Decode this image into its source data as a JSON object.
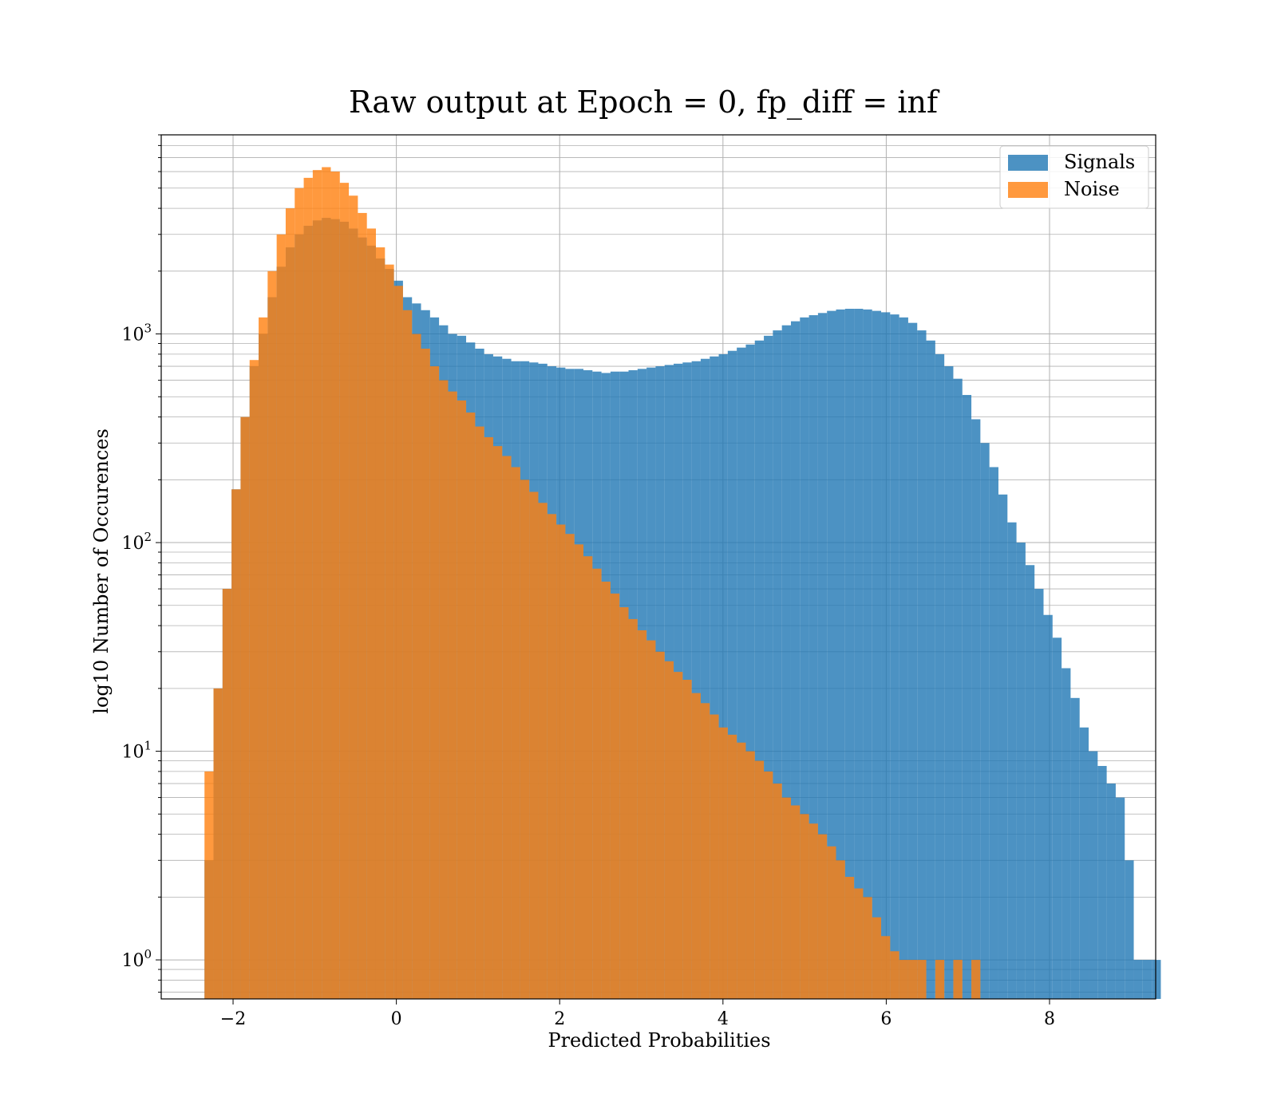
{
  "chart_data": {
    "type": "histogram",
    "title": "Raw output at Epoch = 0, fp_diff = inf",
    "xlabel": "Predicted Probabilities",
    "ylabel": "log10 Number of Occurences",
    "xlim": [
      -2.88,
      9.3
    ],
    "ylim": [
      0.65,
      9000
    ],
    "yscale": "log",
    "grid": true,
    "legend_position": "top-right",
    "x_ticks": [
      -2,
      0,
      2,
      4,
      6,
      8
    ],
    "x_tick_labels": [
      "−2",
      "0",
      "2",
      "4",
      "6",
      "8"
    ],
    "y_ticks": [
      {
        "value": 1,
        "base": "10",
        "exp": "0"
      },
      {
        "value": 10,
        "base": "10",
        "exp": "1"
      },
      {
        "value": 100,
        "base": "10",
        "exp": "2"
      },
      {
        "value": 1000,
        "base": "10",
        "exp": "3"
      }
    ],
    "series": [
      {
        "name": "Signals",
        "color": "#1f77b4",
        "opacity": 0.8,
        "bin_start": -2.35,
        "bin_width": 0.1105,
        "values": [
          3,
          20,
          60,
          180,
          400,
          700,
          1000,
          1500,
          2100,
          2600,
          3000,
          3300,
          3500,
          3600,
          3550,
          3450,
          3200,
          2900,
          2650,
          2300,
          2050,
          1800,
          1500,
          1400,
          1300,
          1200,
          1100,
          1000,
          980,
          910,
          850,
          800,
          780,
          760,
          740,
          740,
          730,
          720,
          700,
          690,
          680,
          680,
          670,
          660,
          650,
          660,
          660,
          670,
          680,
          690,
          700,
          710,
          720,
          730,
          740,
          760,
          780,
          800,
          830,
          860,
          890,
          930,
          980,
          1040,
          1100,
          1150,
          1200,
          1230,
          1260,
          1290,
          1310,
          1320,
          1320,
          1310,
          1290,
          1270,
          1240,
          1200,
          1130,
          1040,
          930,
          800,
          700,
          610,
          510,
          390,
          300,
          230,
          170,
          125,
          100,
          78,
          60,
          45,
          35,
          25,
          18,
          13,
          10,
          8.5,
          7,
          6,
          3,
          1,
          1,
          1
        ],
        "legend_label": "Signals"
      },
      {
        "name": "Noise",
        "color": "#ff7f0e",
        "opacity": 0.8,
        "bin_start": -2.35,
        "bin_width": 0.1105,
        "values": [
          8,
          20,
          60,
          180,
          400,
          750,
          1200,
          2000,
          3000,
          4000,
          5000,
          5600,
          6100,
          6300,
          6000,
          5300,
          4600,
          3800,
          3200,
          2600,
          2150,
          1700,
          1300,
          1000,
          850,
          700,
          600,
          530,
          480,
          420,
          360,
          320,
          290,
          260,
          230,
          200,
          175,
          155,
          137,
          122,
          110,
          98,
          86,
          75,
          65,
          57,
          49,
          43,
          38,
          34,
          30,
          27,
          24,
          22,
          19,
          17,
          15,
          13,
          12,
          11,
          10,
          9,
          8,
          7,
          6,
          5.5,
          5,
          4.5,
          4,
          3.5,
          3,
          2.5,
          2.2,
          2,
          1.6,
          1.3,
          1.1,
          1,
          1,
          1,
          0,
          1,
          0,
          1,
          0,
          1,
          0,
          0,
          0,
          0,
          0,
          0,
          0,
          0,
          0,
          0,
          0,
          0,
          0,
          0,
          0,
          0,
          0,
          0,
          0,
          0,
          0
        ],
        "legend_label": "Noise"
      }
    ]
  }
}
